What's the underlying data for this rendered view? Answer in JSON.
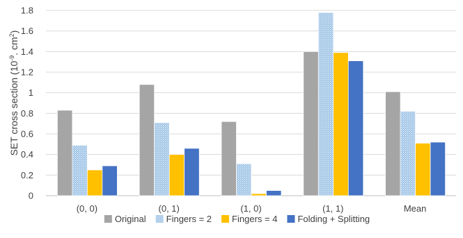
{
  "chart_data": {
    "type": "bar",
    "title": "",
    "xlabel": "",
    "ylabel": "SET cross section (10",
    "ylabel_sup": "-9",
    "ylabel_mid": ". cm",
    "ylabel_sup2": "2",
    "ylabel_end": ")",
    "ylim": [
      0,
      1.8
    ],
    "yticks": [
      "0",
      "0.2",
      "0.4",
      "0.6",
      "0.8",
      "1",
      "1.2",
      "1.4",
      "1.6",
      "1.8"
    ],
    "ytick_values": [
      0,
      0.2,
      0.4,
      0.6,
      0.8,
      1.0,
      1.2,
      1.4,
      1.6,
      1.8
    ],
    "grid": true,
    "legend_position": "bottom",
    "categories": [
      "(0, 0)",
      "(0, 1)",
      "(1, 0)",
      "(1, 1)",
      "Mean"
    ],
    "series": [
      {
        "name": "Original",
        "color": "#a5a5a5",
        "pattern": "solid",
        "values": [
          0.83,
          1.08,
          0.72,
          1.4,
          1.01
        ]
      },
      {
        "name": "Fingers = 2",
        "color": "#9dc3e6",
        "pattern": "dots",
        "values": [
          0.49,
          0.71,
          0.31,
          1.78,
          0.82
        ]
      },
      {
        "name": "Fingers = 4",
        "color": "#ffc000",
        "pattern": "solid",
        "values": [
          0.25,
          0.4,
          0.02,
          1.39,
          0.51
        ]
      },
      {
        "name": "Folding + Splitting",
        "color": "#4472c4",
        "pattern": "solid",
        "values": [
          0.29,
          0.46,
          0.05,
          1.31,
          0.52
        ]
      }
    ]
  }
}
